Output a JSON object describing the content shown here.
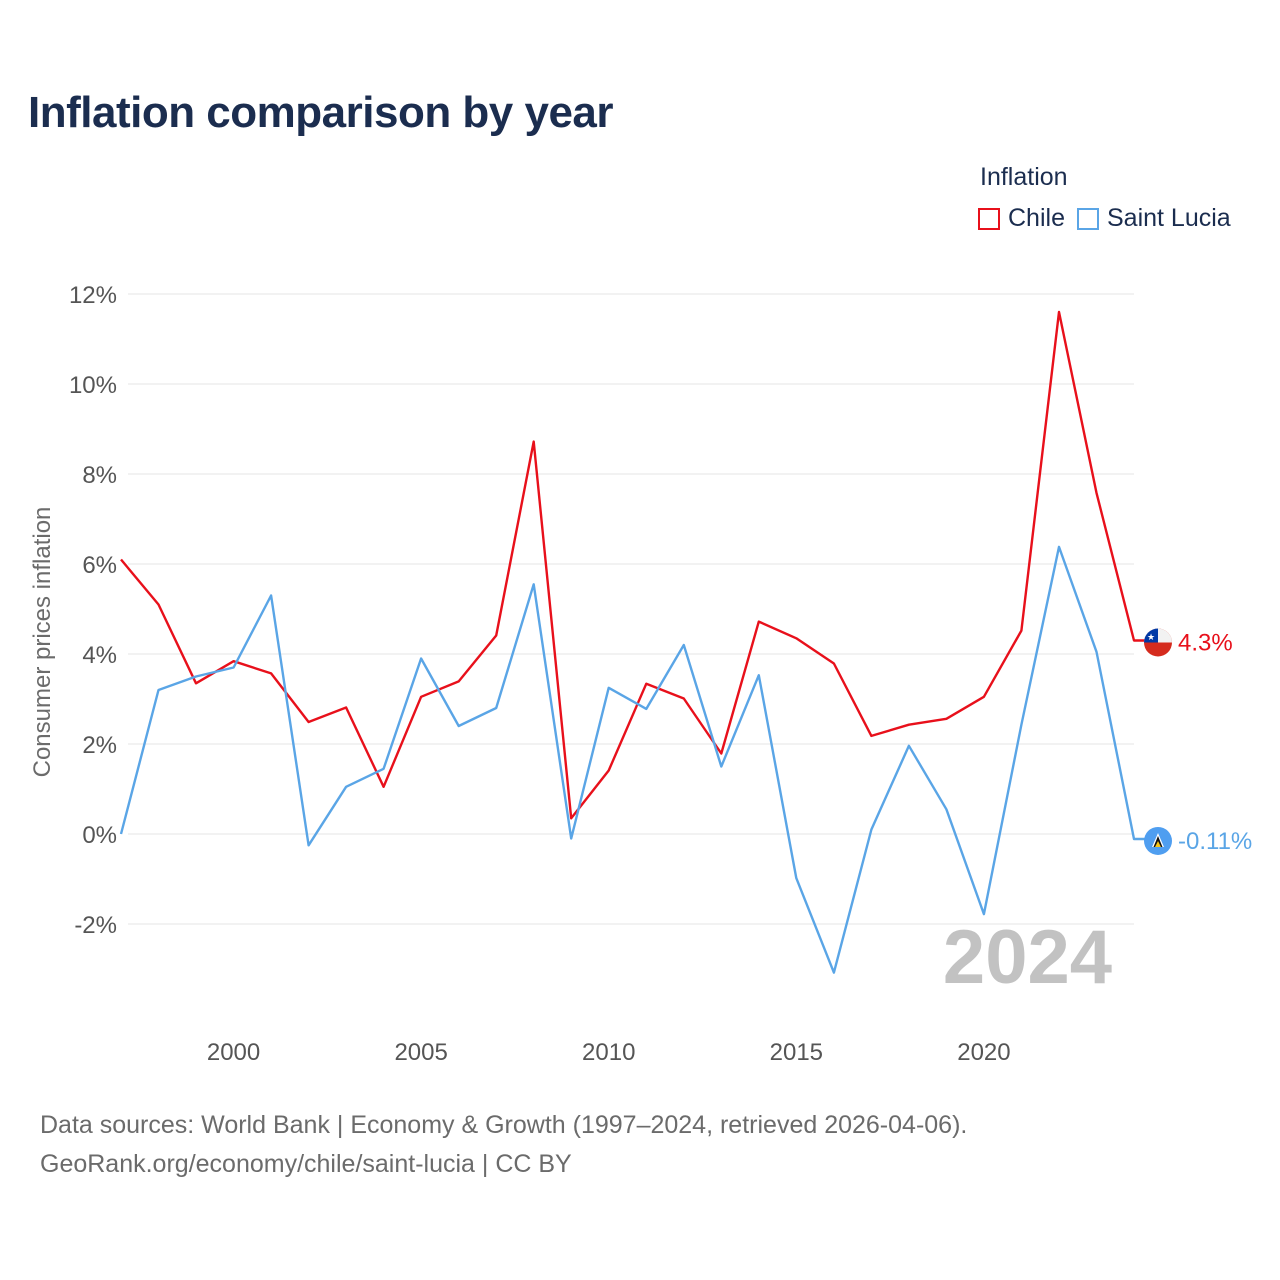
{
  "title": "Inflation comparison by year",
  "legend": {
    "title": "Inflation",
    "items": [
      {
        "label": "Chile",
        "color": "#e8101b"
      },
      {
        "label": "Saint Lucia",
        "color": "#5aa5e6"
      }
    ]
  },
  "source": {
    "line1": "Data sources: World Bank | Economy & Growth (1997–2024, retrieved 2026-04-06).",
    "line2": "GeoRank.org/economy/chile/saint-lucia | CC BY"
  },
  "chart_data": {
    "type": "line",
    "title": "Inflation comparison by year",
    "xlabel": "",
    "ylabel": "Consumer prices inflation",
    "xlim": [
      1997,
      2024
    ],
    "ylim": [
      -4,
      12
    ],
    "x_ticks": [
      2000,
      2005,
      2010,
      2015,
      2020
    ],
    "y_ticks": [
      -2,
      0,
      2,
      4,
      6,
      8,
      10,
      12
    ],
    "y_tick_labels": [
      "-2%",
      "0%",
      "2%",
      "4%",
      "6%",
      "8%",
      "10%",
      "12%"
    ],
    "grid": true,
    "year_watermark": "2024",
    "x": [
      1997,
      1998,
      1999,
      2000,
      2001,
      2002,
      2003,
      2004,
      2005,
      2006,
      2007,
      2008,
      2009,
      2010,
      2011,
      2012,
      2013,
      2014,
      2015,
      2016,
      2017,
      2018,
      2019,
      2020,
      2021,
      2022,
      2023,
      2024
    ],
    "series": [
      {
        "name": "Chile",
        "color": "#e8101b",
        "end_label": "4.3%",
        "values": [
          6.1,
          5.1,
          3.35,
          3.84,
          3.57,
          2.49,
          2.81,
          1.05,
          3.05,
          3.39,
          4.41,
          8.72,
          0.35,
          1.41,
          3.34,
          3.01,
          1.79,
          4.72,
          4.35,
          3.79,
          2.18,
          2.43,
          2.56,
          3.05,
          4.52,
          11.6,
          7.58,
          4.3
        ]
      },
      {
        "name": "Saint Lucia",
        "color": "#5aa5e6",
        "end_label": "-0.11%",
        "values": [
          0.0,
          3.2,
          3.5,
          3.7,
          5.3,
          -0.25,
          1.05,
          1.45,
          3.9,
          2.4,
          2.8,
          5.55,
          -0.1,
          3.25,
          2.78,
          4.2,
          1.5,
          3.53,
          -0.98,
          -3.08,
          0.1,
          1.96,
          0.55,
          -1.78,
          2.43,
          6.38,
          4.05,
          -0.11
        ]
      }
    ]
  }
}
